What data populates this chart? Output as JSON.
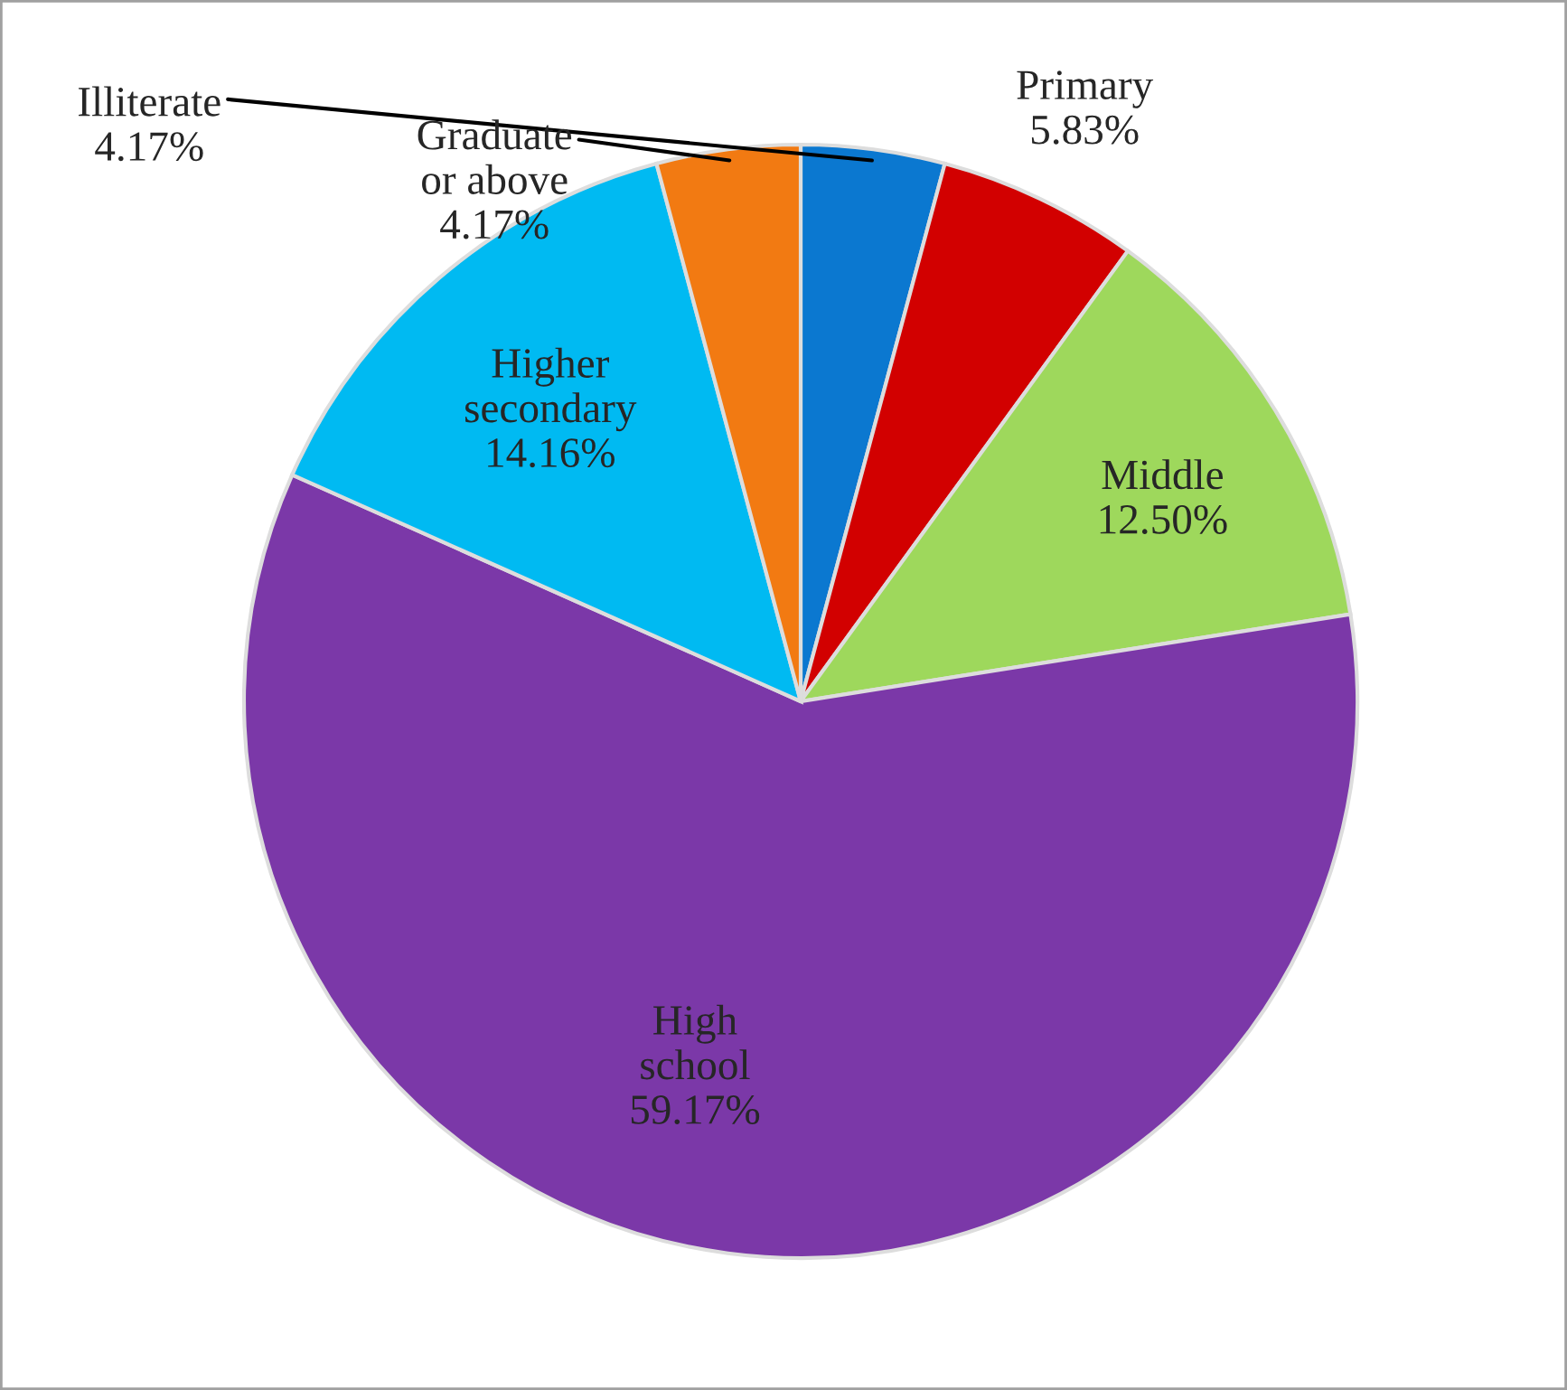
{
  "chart_data": {
    "type": "pie",
    "categories": [
      "Illiterate",
      "Primary",
      "Middle",
      "High\nschool",
      "Higher\nsecondary",
      "Graduate\nor above"
    ],
    "values": [
      4.17,
      5.83,
      12.5,
      59.17,
      14.16,
      4.17
    ],
    "value_labels": [
      "4.17%",
      "5.83%",
      "12.50%",
      "59.17%",
      "14.16%",
      "4.17%"
    ],
    "colors": [
      "#0b78d0",
      "#d20000",
      "#9ed85c",
      "#7b38a8",
      "#00baf2",
      "#f27a12"
    ]
  }
}
